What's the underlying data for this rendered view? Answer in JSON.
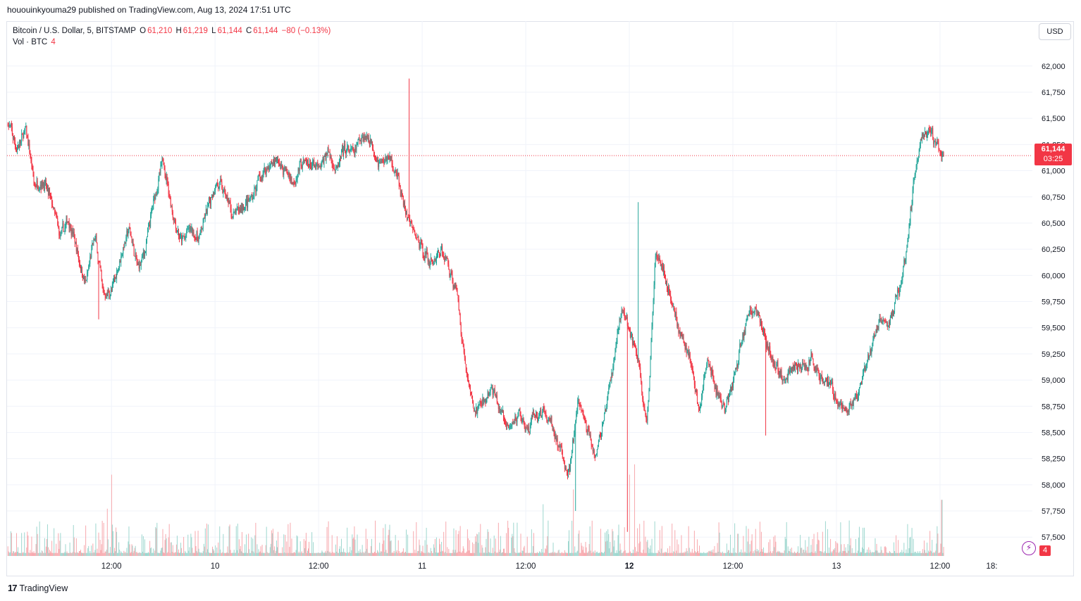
{
  "header": {
    "publish_line": "hououinkyouma29 published on TradingView.com, Aug 13, 2024 17:51 UTC"
  },
  "legend": {
    "symbol": "Bitcoin / U.S. Dollar, 5, BITSTAMP",
    "open_label": "O",
    "open": "61,210",
    "high_label": "H",
    "high": "61,219",
    "low_label": "L",
    "low": "61,144",
    "close_label": "C",
    "close": "61,144",
    "change": "−80 (−0.13%)",
    "vol_label": "Vol · BTC",
    "vol_value": "4"
  },
  "currency_button": "USD",
  "last_price": {
    "value": "61,144",
    "countdown": "03:25"
  },
  "volume_badge": "4",
  "footer": {
    "brand": "TradingView",
    "mark": "17"
  },
  "colors": {
    "up": "#26a69a",
    "down": "#f23645",
    "up_vol": "#9ed7cf",
    "down_vol": "#f7a9ae",
    "grid": "#f0f3fa",
    "price_line": "#f23645"
  },
  "icons": {
    "flash": "lightning-icon"
  },
  "chart_data": {
    "type": "candlestick",
    "timeframe": "5m",
    "y_ticks": [
      62000,
      61750,
      61500,
      61250,
      61000,
      60750,
      60500,
      60250,
      60000,
      59750,
      59500,
      59250,
      59000,
      58750,
      58500,
      58250,
      58000,
      57750,
      57500
    ],
    "y_tick_labels": [
      "62,000",
      "61,750",
      "61,500",
      "61,250",
      "61,000",
      "60,750",
      "60,500",
      "60,250",
      "60,000",
      "59,750",
      "59,500",
      "59,250",
      "59,000",
      "58,750",
      "58,500",
      "58,250",
      "58,000",
      "57,750",
      "57,500"
    ],
    "ylim": [
      57320,
      62160
    ],
    "x_ticks": [
      "12:00",
      "10",
      "12:00",
      "11",
      "12:00",
      "12",
      "12:00",
      "13",
      "12:00",
      "18:"
    ],
    "x_tick_bold": [
      false,
      false,
      false,
      false,
      false,
      true,
      false,
      false,
      false,
      false
    ],
    "x_tick_times": [
      12,
      24,
      36,
      48,
      60,
      72,
      84,
      96,
      108,
      114
    ],
    "xlim": [
      -0.1,
      118.7
    ],
    "last_price": 61144,
    "price_path": [
      [
        0,
        61450
      ],
      [
        1,
        61200
      ],
      [
        2,
        61400
      ],
      [
        3,
        60850
      ],
      [
        4,
        60900
      ],
      [
        5,
        60700
      ],
      [
        6,
        60350
      ],
      [
        7,
        60550
      ],
      [
        8,
        60200
      ],
      [
        9,
        59900
      ],
      [
        10,
        60400
      ],
      [
        11,
        59800
      ],
      [
        12,
        59850
      ],
      [
        13,
        60200
      ],
      [
        14,
        60450
      ],
      [
        15,
        60050
      ],
      [
        16,
        60300
      ],
      [
        17,
        60800
      ],
      [
        18,
        61100
      ],
      [
        19,
        60600
      ],
      [
        20,
        60300
      ],
      [
        21,
        60450
      ],
      [
        22,
        60350
      ],
      [
        23,
        60600
      ],
      [
        24,
        60900
      ],
      [
        25,
        60800
      ],
      [
        26,
        60550
      ],
      [
        27,
        60650
      ],
      [
        28,
        60700
      ],
      [
        29,
        60900
      ],
      [
        30,
        61050
      ],
      [
        31,
        61100
      ],
      [
        32,
        61000
      ],
      [
        33,
        60900
      ],
      [
        34,
        61100
      ],
      [
        35,
        61050
      ],
      [
        36,
        61000
      ],
      [
        37,
        61200
      ],
      [
        38,
        61000
      ],
      [
        39,
        61200
      ],
      [
        40,
        61150
      ],
      [
        41,
        61350
      ],
      [
        42,
        61300
      ],
      [
        43,
        61050
      ],
      [
        44,
        61150
      ],
      [
        45,
        60950
      ],
      [
        46,
        60600
      ],
      [
        47,
        60400
      ],
      [
        48,
        60250
      ],
      [
        49,
        60100
      ],
      [
        50,
        60250
      ],
      [
        51,
        60100
      ],
      [
        52,
        59800
      ],
      [
        53,
        59100
      ],
      [
        54,
        58700
      ],
      [
        55,
        58800
      ],
      [
        56,
        58900
      ],
      [
        57,
        58700
      ],
      [
        58,
        58500
      ],
      [
        59,
        58700
      ],
      [
        60,
        58500
      ],
      [
        61,
        58650
      ],
      [
        62,
        58700
      ],
      [
        63,
        58550
      ],
      [
        64,
        58300
      ],
      [
        65,
        58100
      ],
      [
        66,
        58800
      ],
      [
        67,
        58550
      ],
      [
        68,
        58300
      ],
      [
        69,
        58600
      ],
      [
        70,
        59100
      ],
      [
        71,
        59700
      ],
      [
        72,
        59450
      ],
      [
        73,
        59200
      ],
      [
        74,
        58500
      ],
      [
        75,
        60300
      ],
      [
        76,
        60000
      ],
      [
        77,
        59700
      ],
      [
        78,
        59400
      ],
      [
        79,
        59200
      ],
      [
        80,
        58700
      ],
      [
        81,
        59200
      ],
      [
        82,
        58900
      ],
      [
        83,
        58700
      ],
      [
        84,
        59000
      ],
      [
        85,
        59400
      ],
      [
        86,
        59700
      ],
      [
        87,
        59600
      ],
      [
        88,
        59300
      ],
      [
        89,
        59100
      ],
      [
        90,
        59000
      ],
      [
        91,
        59150
      ],
      [
        92,
        59100
      ],
      [
        93,
        59200
      ],
      [
        94,
        59050
      ],
      [
        95,
        59000
      ],
      [
        96,
        58800
      ],
      [
        97,
        58700
      ],
      [
        98,
        58800
      ],
      [
        99,
        59000
      ],
      [
        100,
        59300
      ],
      [
        101,
        59600
      ],
      [
        102,
        59500
      ],
      [
        103,
        59800
      ],
      [
        104,
        60200
      ],
      [
        105,
        61000
      ],
      [
        106,
        61400
      ],
      [
        107,
        61350
      ],
      [
        108,
        61144
      ]
    ],
    "notable_extremes": [
      {
        "t": 46.5,
        "high": 61880
      },
      {
        "t": 10.5,
        "low": 59580
      },
      {
        "t": 65.8,
        "low": 57750
      },
      {
        "t": 71.8,
        "low": 57550
      },
      {
        "t": 73.0,
        "high": 60700
      },
      {
        "t": 87.8,
        "low": 58470
      }
    ],
    "volume_peaks": [
      {
        "t": 12.0,
        "v": 0.55
      },
      {
        "t": 11.5,
        "v": 0.32
      },
      {
        "t": 62.0,
        "v": 0.35
      },
      {
        "t": 65.5,
        "v": 0.45
      },
      {
        "t": 72.0,
        "v": 0.55
      },
      {
        "t": 72.6,
        "v": 0.62
      },
      {
        "t": 108.2,
        "v": 0.38
      }
    ]
  }
}
